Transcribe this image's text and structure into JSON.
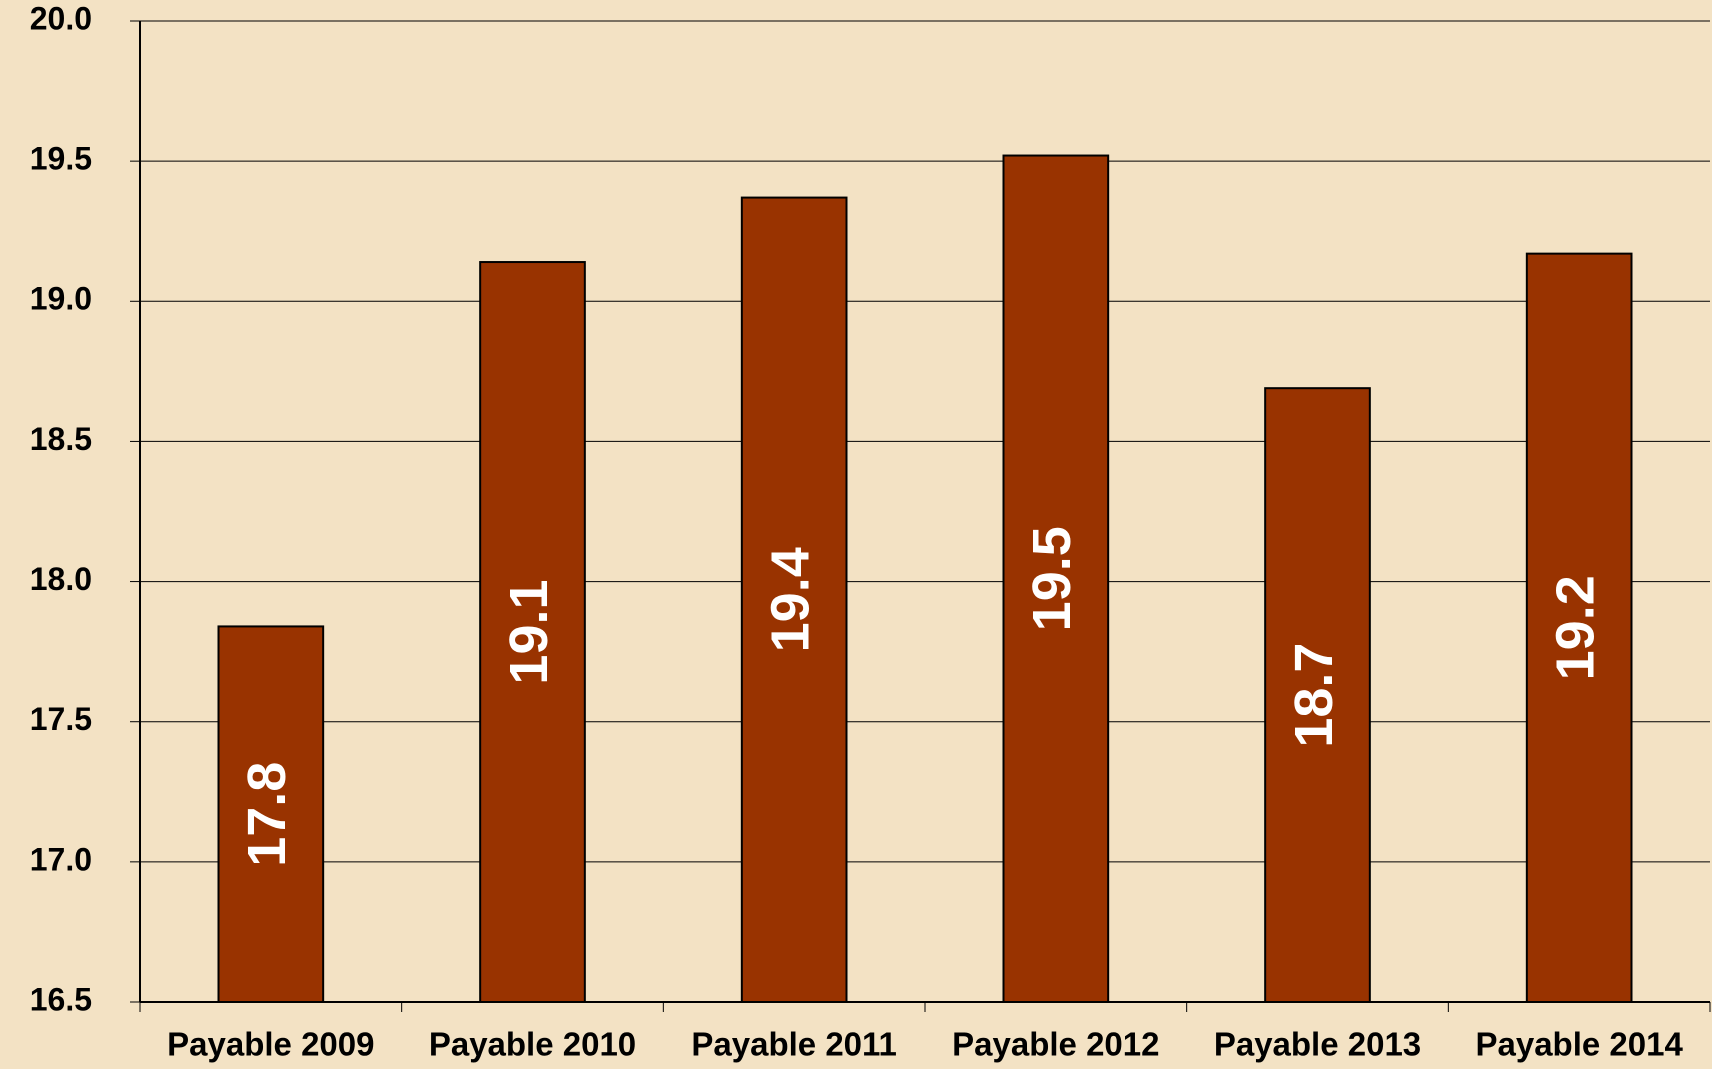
{
  "chart_data": {
    "type": "bar",
    "categories": [
      "Payable 2009",
      "Payable 2010",
      "Payable 2011",
      "Payable 2012",
      "Payable 2013",
      "Payable 2014"
    ],
    "values": [
      17.84,
      19.14,
      19.37,
      19.52,
      18.69,
      19.17
    ],
    "value_labels": [
      "17.8",
      "19.1",
      "19.4",
      "19.5",
      "18.7",
      "19.2"
    ],
    "color": "#993300",
    "ylim": [
      16.5,
      20.0
    ],
    "yticks": [
      16.5,
      {
        "value": 17,
        "label": "17.0"
      },
      17.5,
      {
        "value": 18,
        "label": "18.0"
      },
      18.5,
      {
        "value": 19,
        "label": "19.0"
      },
      19.5,
      {
        "value": 20,
        "label": "20.0"
      }
    ],
    "grid": true
  }
}
